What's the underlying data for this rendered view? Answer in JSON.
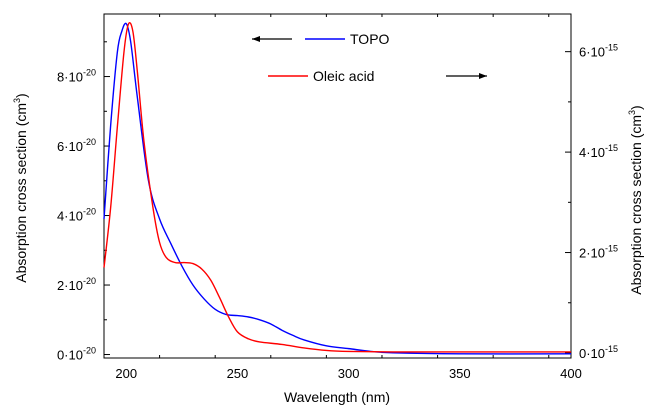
{
  "chart_data": {
    "type": "line",
    "xlabel": "Wavelength (nm)",
    "ylabel_left": "Absorption cross section (cm",
    "ylabel_right": "Absorption cross section (cm",
    "ylabel_unit_exp": "3",
    "ylabel_close": ")",
    "xlim": [
      190,
      400
    ],
    "ylim_left": [
      -1e-21,
      9.8e-20
    ],
    "ylim_right": [
      -1e-16,
      6.75e-15
    ],
    "x_ticks": [
      200,
      250,
      300,
      350,
      400
    ],
    "x_tick_labels": [
      "200",
      "250",
      "300",
      "350",
      "400"
    ],
    "y_left_ticks": [
      {
        "value": 0,
        "label": "0·10",
        "exp": "-20"
      },
      {
        "value": 2e-20,
        "label": "2·10",
        "exp": "-20"
      },
      {
        "value": 4e-20,
        "label": "4·10",
        "exp": "-20"
      },
      {
        "value": 6e-20,
        "label": "6·10",
        "exp": "-20"
      },
      {
        "value": 8e-20,
        "label": "8·10",
        "exp": "-20"
      }
    ],
    "y_right_ticks": [
      {
        "value": 0,
        "label": "0·10",
        "exp": "-15"
      },
      {
        "value": 2e-15,
        "label": "2·10",
        "exp": "-15"
      },
      {
        "value": 4e-15,
        "label": "4·10",
        "exp": "-15"
      },
      {
        "value": 6e-15,
        "label": "6·10",
        "exp": "-15"
      }
    ],
    "series": [
      {
        "name": "TOPO",
        "axis": "left",
        "color": "#0000ff",
        "x": [
          190,
          193,
          196,
          198,
          200,
          202,
          205,
          210,
          215,
          220,
          225,
          230,
          235,
          240,
          245,
          250,
          255,
          260,
          265,
          270,
          275,
          280,
          290,
          300,
          310,
          320,
          350,
          400
        ],
        "y": [
          3.9e-20,
          6.6e-20,
          8.7e-20,
          9.3e-20,
          9.52e-20,
          9e-20,
          7.4e-20,
          5e-20,
          3.9e-20,
          3.2e-20,
          2.55e-20,
          2e-20,
          1.6e-20,
          1.3e-20,
          1.15e-20,
          1.12e-20,
          1.08e-20,
          1e-20,
          8.8e-21,
          7e-21,
          5.5e-21,
          4.2e-21,
          2.5e-21,
          1.7e-21,
          9e-22,
          5e-22,
          2e-22,
          2e-22
        ]
      },
      {
        "name": "Oleic acid",
        "axis": "right",
        "color": "#ff0000",
        "x": [
          190,
          193,
          196,
          199,
          201,
          203,
          205,
          208,
          212,
          215,
          218,
          222,
          226,
          230,
          234,
          238,
          242,
          246,
          250,
          255,
          260,
          270,
          280,
          290,
          300,
          320,
          350,
          400
        ],
        "y": [
          1.7e-15,
          2.9e-15,
          4.5e-15,
          6e-15,
          6.55e-15,
          6.4e-15,
          5.6e-15,
          4.2e-15,
          2.9e-15,
          2.2e-15,
          1.9e-15,
          1.8e-15,
          1.8e-15,
          1.78e-15,
          1.67e-15,
          1.45e-15,
          1.1e-15,
          7.2e-16,
          4.2e-16,
          2.8e-16,
          2.2e-16,
          1.7e-16,
          1e-16,
          5e-17,
          3e-17,
          2e-17,
          2e-17,
          2e-17
        ]
      }
    ],
    "legend": [
      {
        "label": "TOPO",
        "color": "#0000ff",
        "arrow": "left"
      },
      {
        "label": "Oleic acid",
        "color": "#ff0000",
        "arrow": "right"
      }
    ],
    "grid": false
  }
}
